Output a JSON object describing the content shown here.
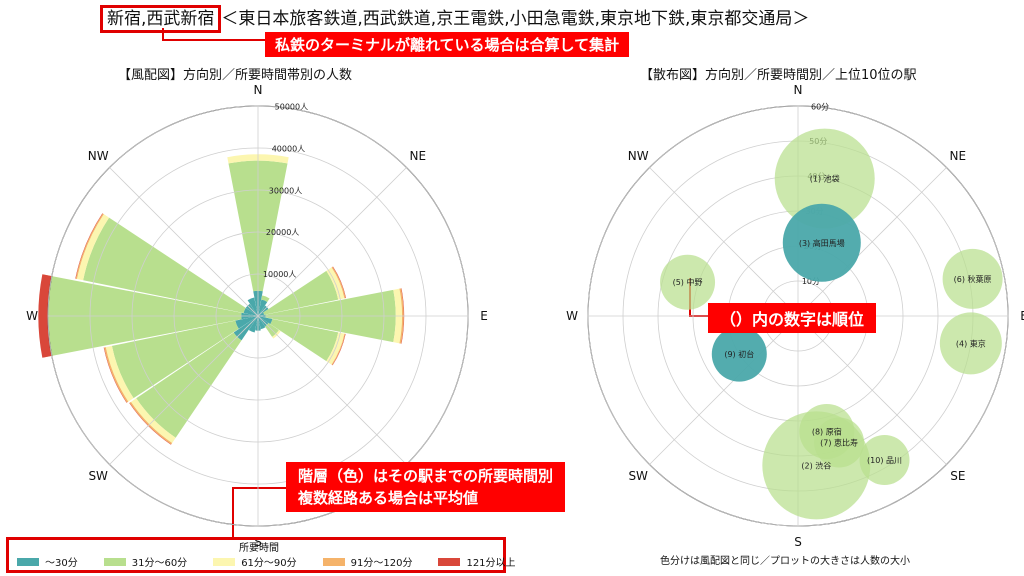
{
  "header": {
    "title_boxed": "新宿,西武新宿",
    "title_rest": "＜東日本旅客鉄道,西武鉄道,京王電鉄,小田急電鉄,東京地下鉄,東京都交通局＞",
    "callout_terminal": "私鉄のターミナルが離れている場合は合算して集計"
  },
  "callouts": {
    "rank": "（）内の数字は順位",
    "color_line1": "階層（色）はその駅までの所要時間別",
    "color_line2": "複数経路ある場合は平均値"
  },
  "colors": {
    "c1": "#4aa8aa",
    "c2": "#b8df8e",
    "c3": "#fcf6b0",
    "c4": "#f5b36a",
    "c5": "#d9473a",
    "callout_red": "#ff0000"
  },
  "chart_data": [
    {
      "type": "windrose",
      "title": "【風配図】方向別／所要時間帯別の人数",
      "directions": [
        "N",
        "NNE",
        "NE",
        "ENE",
        "E",
        "ESE",
        "SE",
        "SSE",
        "S",
        "SSW",
        "SW",
        "WSW",
        "W",
        "WNW",
        "NW",
        "NNW"
      ],
      "direction_labels": [
        "N",
        "NE",
        "E",
        "SE",
        "S",
        "SW",
        "W",
        "NW"
      ],
      "r_ticks": [
        "10000人",
        "20000人",
        "30000人",
        "40000人",
        "50000人"
      ],
      "r_max": 50000,
      "series": [
        {
          "name": "～30分",
          "color": "c1",
          "values": [
            6000,
            4000,
            3000,
            1500,
            1800,
            3500,
            3000,
            3200,
            3500,
            4000,
            7000,
            5500,
            4000,
            3500,
            3500,
            4500
          ]
        },
        {
          "name": "31分～60分",
          "color": "c2",
          "values": [
            31000,
            1000,
            0,
            18000,
            31000,
            16000,
            3000,
            0,
            0,
            0,
            28000,
            30000,
            46000,
            39000,
            0,
            0
          ]
        },
        {
          "name": "61分～90分",
          "color": "c3",
          "values": [
            1500,
            0,
            0,
            1500,
            1500,
            1500,
            500,
            0,
            0,
            0,
            1500,
            1500,
            2000,
            1500,
            0,
            0
          ]
        },
        {
          "name": "91分～120分",
          "color": "c4",
          "values": [
            0,
            0,
            0,
            300,
            400,
            200,
            0,
            0,
            0,
            0,
            400,
            400,
            300,
            300,
            0,
            0
          ]
        },
        {
          "name": "121分以上",
          "color": "c5",
          "values": [
            0,
            0,
            0,
            100,
            100,
            100,
            0,
            0,
            0,
            0,
            100,
            100,
            100,
            100,
            0,
            0
          ]
        }
      ]
    },
    {
      "type": "scatter",
      "title": "【散布図】方向別／所要時間別／上位10位の駅",
      "direction_labels": [
        "N",
        "NE",
        "E",
        "SE",
        "S",
        "SW",
        "W",
        "NW"
      ],
      "r_ticks": [
        "10分",
        "20分",
        "30分",
        "40分",
        "50分",
        "60分"
      ],
      "r_max": 60,
      "points": [
        {
          "label": "(1) 池袋",
          "angle_deg": 11,
          "minutes": 40,
          "size": 1.0,
          "color": "c2"
        },
        {
          "label": "(3) 高田馬場",
          "angle_deg": 18,
          "minutes": 22,
          "size": 0.78,
          "color": "c1"
        },
        {
          "label": "(5) 中野",
          "angle_deg": 287,
          "minutes": 33,
          "size": 0.55,
          "color": "c2"
        },
        {
          "label": "(6) 秋葉原",
          "angle_deg": 78,
          "minutes": 51,
          "size": 0.6,
          "color": "c2"
        },
        {
          "label": "(4) 東京",
          "angle_deg": 99,
          "minutes": 50,
          "size": 0.62,
          "color": "c2"
        },
        {
          "label": "(9) 初台",
          "angle_deg": 237,
          "minutes": 20,
          "size": 0.55,
          "color": "c1"
        },
        {
          "label": "(8) 原宿",
          "angle_deg": 166,
          "minutes": 34,
          "size": 0.55,
          "color": "c2"
        },
        {
          "label": "(7) 恵比寿",
          "angle_deg": 162,
          "minutes": 38,
          "size": 0.5,
          "color": "c2"
        },
        {
          "label": "(10) 品川",
          "angle_deg": 149,
          "minutes": 48,
          "size": 0.5,
          "color": "c2"
        },
        {
          "label": "(2) 渋谷",
          "angle_deg": 173,
          "minutes": 43,
          "size": 1.08,
          "color": "c2"
        }
      ]
    }
  ],
  "legend": {
    "title": "所要時間",
    "items": [
      "～30分",
      "31分～60分",
      "61分～90分",
      "91分～120分",
      "121分以上"
    ]
  },
  "note": "色分けは風配図と同じ／プロットの大きさは人数の大小"
}
